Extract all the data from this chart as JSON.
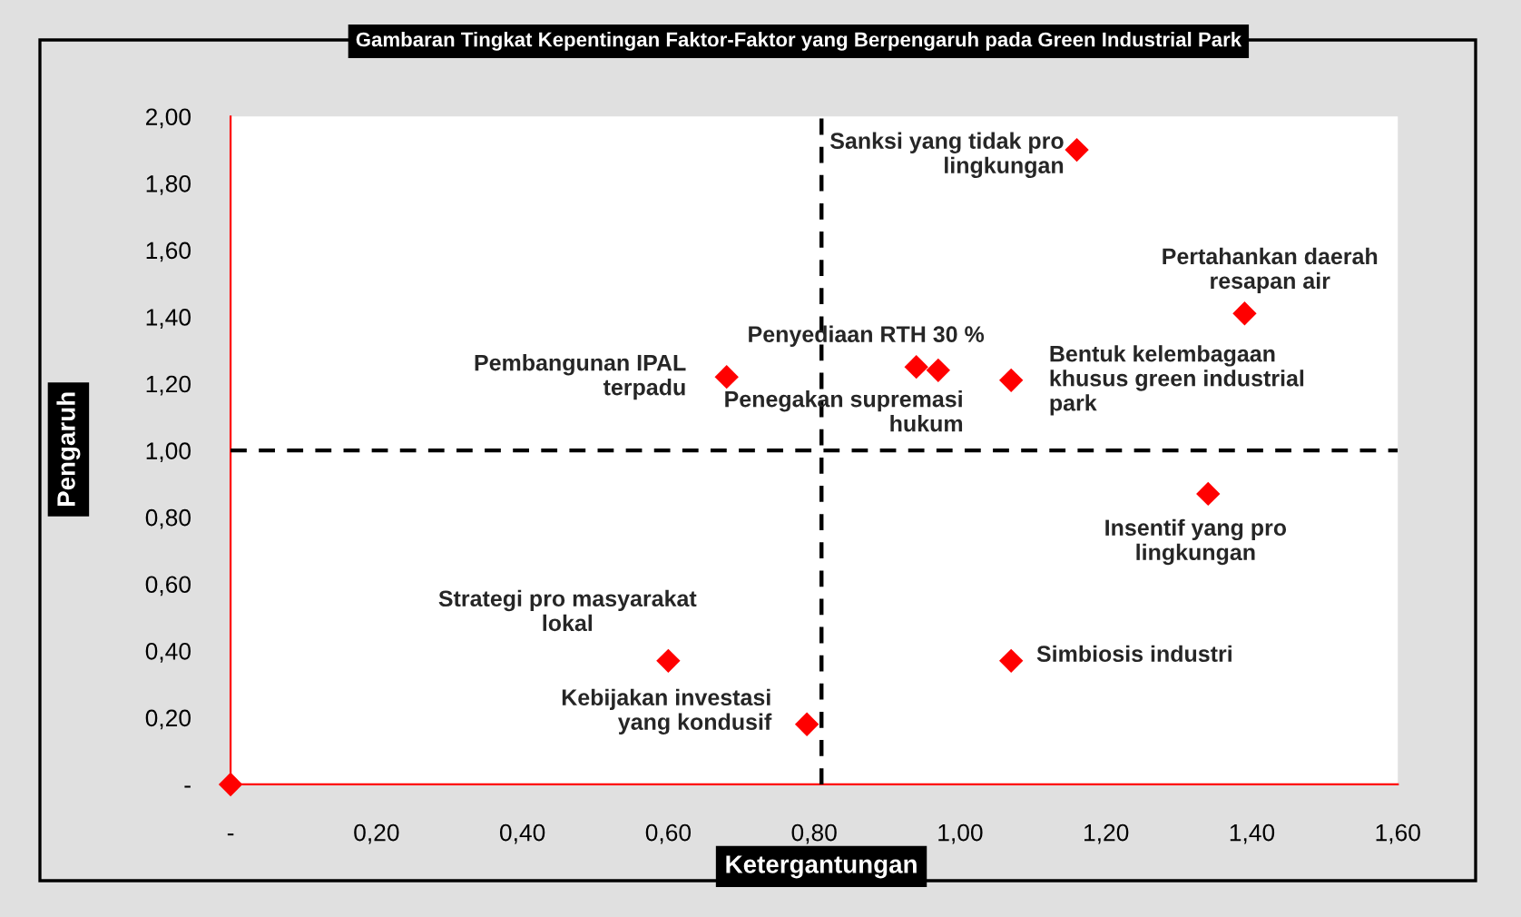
{
  "chart_data": {
    "type": "scatter",
    "title": "Gambaran Tingkat Kepentingan Faktor-Faktor yang Berpengaruh pada Green Industrial Park",
    "xlabel": "Ketergantungan",
    "ylabel": "Pengaruh",
    "series": [
      {
        "color": "#ff0000",
        "x": [
          1.16,
          1.39,
          0.94,
          0.97,
          1.07,
          0.68,
          1.34,
          0.6,
          1.07,
          0.79,
          0
        ],
        "values": [
          1.9,
          1.41,
          1.25,
          1.24,
          1.21,
          1.22,
          0.87,
          0.37,
          0.37,
          0.18,
          0
        ]
      }
    ],
    "marker": "diamond",
    "grid": false,
    "legend": false,
    "xlim": [
      0,
      1.6
    ],
    "ylim": [
      0,
      2
    ],
    "xticks": [
      {
        "value": 0,
        "label": "-"
      },
      {
        "value": 0.2,
        "label": "0,20"
      },
      {
        "value": 0.4,
        "label": "0,40"
      },
      {
        "value": 0.6,
        "label": "0,60"
      },
      {
        "value": 0.8,
        "label": "0,80"
      },
      {
        "value": 1.0,
        "label": "1,00"
      },
      {
        "value": 1.2,
        "label": "1,20"
      },
      {
        "value": 1.4,
        "label": "1,40"
      },
      {
        "value": 1.6,
        "label": "1,60"
      }
    ],
    "yticks": [
      {
        "value": 0,
        "label": "-"
      },
      {
        "value": 0.2,
        "label": "0,20"
      },
      {
        "value": 0.4,
        "label": "0,40"
      },
      {
        "value": 0.6,
        "label": "0,60"
      },
      {
        "value": 0.8,
        "label": "0,80"
      },
      {
        "value": 1.0,
        "label": "1,00"
      },
      {
        "value": 1.2,
        "label": "1,20"
      },
      {
        "value": 1.4,
        "label": "1,40"
      },
      {
        "value": 1.6,
        "label": "1,60"
      },
      {
        "value": 1.8,
        "label": "1,80"
      },
      {
        "value": 2.0,
        "label": "2,00"
      }
    ],
    "ref_lines": [
      {
        "axis": "x",
        "value": 0.81,
        "color": "#000000",
        "line_style": "dashed"
      },
      {
        "axis": "y",
        "value": 1.0,
        "color": "#000000",
        "line_style": "dashed"
      }
    ],
    "annotations": [
      {
        "text": "Sanksi yang tidak pro\nlingkungan",
        "x": 1.16,
        "y": 1.9
      },
      {
        "text": "Pertahankan daerah\nresapan air",
        "x": 1.39,
        "y": 1.41
      },
      {
        "text": "Penyediaan RTH 30 %",
        "x": 0.94,
        "y": 1.25
      },
      {
        "text": "Penegakan supremasi\nhukum",
        "x": 0.97,
        "y": 1.24
      },
      {
        "text": "Bentuk kelembagaan\nkhusus green industrial\npark",
        "x": 1.07,
        "y": 1.21
      },
      {
        "text": "Pembangunan IPAL\nterpadu",
        "x": 0.68,
        "y": 1.22
      },
      {
        "text": "Insentif yang pro\nlingkungan",
        "x": 1.34,
        "y": 0.87
      },
      {
        "text": "Strategi pro masyarakat\nlokal",
        "x": 0.6,
        "y": 0.37
      },
      {
        "text": "Simbiosis industri",
        "x": 1.07,
        "y": 0.37
      },
      {
        "text": "Kebijakan investasi\nyang kondusif",
        "x": 0.79,
        "y": 0.18
      }
    ]
  }
}
